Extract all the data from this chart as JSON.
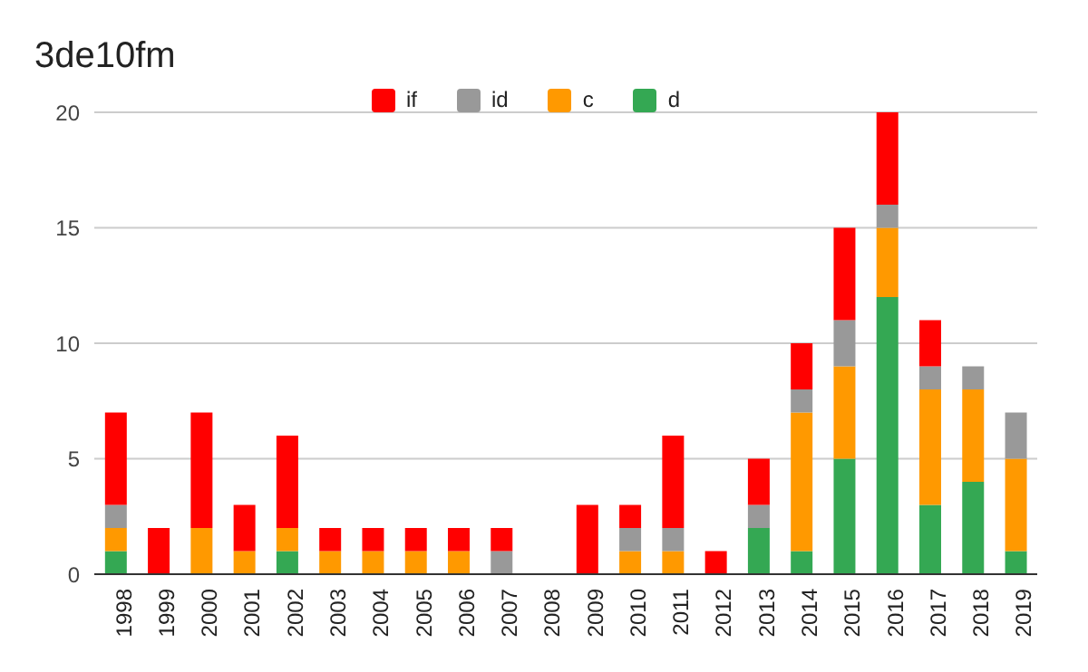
{
  "chart_data": {
    "type": "bar",
    "title": "3de10fm",
    "stacked": true,
    "categories": [
      "1998",
      "1999",
      "2000",
      "2001",
      "2002",
      "2003",
      "2004",
      "2005",
      "2006",
      "2007",
      "2008",
      "2009",
      "2010",
      "2011",
      "2012",
      "2013",
      "2014",
      "2015",
      "2016",
      "2017",
      "2018",
      "2019"
    ],
    "series": [
      {
        "name": "d",
        "color": "#34a853",
        "values": [
          1,
          0,
          0,
          0,
          1,
          0,
          0,
          0,
          0,
          0,
          0,
          0,
          0,
          0,
          0,
          2,
          1,
          5,
          12,
          3,
          4,
          1
        ]
      },
      {
        "name": "c",
        "color": "#ff9900",
        "values": [
          1,
          0,
          2,
          1,
          1,
          1,
          1,
          1,
          1,
          0,
          0,
          0,
          1,
          1,
          0,
          0,
          6,
          4,
          3,
          5,
          4,
          4
        ]
      },
      {
        "name": "id",
        "color": "#999999",
        "values": [
          1,
          0,
          0,
          0,
          0,
          0,
          0,
          0,
          0,
          1,
          0,
          0,
          1,
          1,
          0,
          1,
          1,
          2,
          1,
          1,
          1,
          2
        ]
      },
      {
        "name": "if",
        "color": "#ff0000",
        "values": [
          4,
          2,
          5,
          2,
          4,
          1,
          1,
          1,
          1,
          1,
          0,
          3,
          1,
          4,
          1,
          2,
          2,
          4,
          4,
          2,
          0,
          0
        ]
      }
    ],
    "ylim": [
      0,
      20
    ],
    "yticks": [
      0,
      5,
      10,
      15,
      20
    ],
    "grid": "y",
    "legend": "top"
  }
}
